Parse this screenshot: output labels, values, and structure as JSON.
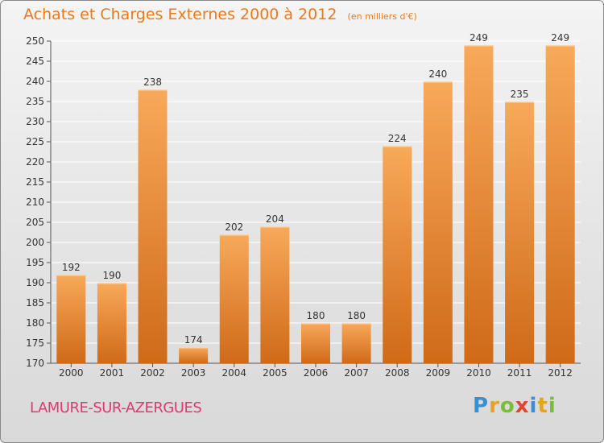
{
  "header": {
    "title": "Achats et Charges Externes 2000 à 2012",
    "unit": "(en milliers d'€)"
  },
  "footer": {
    "commune": "LAMURE-SUR-AZERGUES",
    "logo_letters": [
      "P",
      "r",
      "o",
      "x",
      "i",
      "t",
      "i"
    ],
    "logo_colors": [
      "#3a8fd0",
      "#e8a21e",
      "#7bbd3a",
      "#e2452f",
      "#3a8fd0",
      "#e8a21e",
      "#7bbd3a"
    ]
  },
  "colors": {
    "bar_top": "#f8a95a",
    "bar_bottom": "#cf6a18",
    "title": "#e87a1e",
    "grid": "#ffffff"
  },
  "chart_data": {
    "type": "bar",
    "title": "Achats et Charges Externes 2000 à 2012",
    "subtitle": "(en milliers d'€)",
    "categories": [
      "2000",
      "2001",
      "2002",
      "2003",
      "2004",
      "2005",
      "2006",
      "2007",
      "2008",
      "2009",
      "2010",
      "2011",
      "2012"
    ],
    "values": [
      192,
      190,
      238,
      174,
      202,
      204,
      180,
      180,
      224,
      240,
      249,
      235,
      249
    ],
    "ylim": [
      170,
      250
    ],
    "yticks": [
      170,
      175,
      180,
      185,
      190,
      195,
      200,
      205,
      210,
      215,
      220,
      225,
      230,
      235,
      240,
      245,
      250
    ],
    "grid": true,
    "legend": "none"
  }
}
